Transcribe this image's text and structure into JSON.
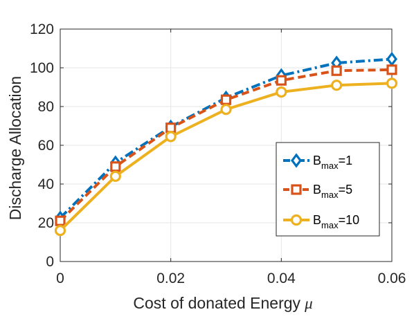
{
  "chart_data": {
    "type": "line",
    "title": "",
    "xlabel": "Cost of donated Energy",
    "xlabel_symbol": "μ",
    "ylabel": "Discharge Allocation",
    "xlim": [
      0,
      0.06
    ],
    "ylim": [
      0,
      120
    ],
    "x": [
      0,
      0.01,
      0.02,
      0.03,
      0.04,
      0.05,
      0.06
    ],
    "xticks": [
      "0",
      "0.02",
      "0.04",
      "0.06"
    ],
    "xtick_values": [
      0,
      0.02,
      0.04,
      0.06
    ],
    "yticks": [
      "0",
      "20",
      "40",
      "60",
      "80",
      "100",
      "120"
    ],
    "ytick_values": [
      0,
      20,
      40,
      60,
      80,
      100,
      120
    ],
    "grid": true,
    "legend_position": "lower-right",
    "series": [
      {
        "name_base": "B",
        "name_sub": "max",
        "name_value": "=1",
        "values": [
          22.5,
          51,
          69.5,
          84.5,
          96,
          102.5,
          104.5
        ],
        "color": "#0072BD",
        "line_style": "dash-dot",
        "marker": "diamond"
      },
      {
        "name_base": "B",
        "name_sub": "max",
        "name_value": "=5",
        "values": [
          21,
          49,
          69,
          83.5,
          93.5,
          98.5,
          99
        ],
        "color": "#D95319",
        "line_style": "dashed",
        "marker": "square"
      },
      {
        "name_base": "B",
        "name_sub": "max",
        "name_value": "=10",
        "values": [
          16,
          44,
          64.5,
          78.5,
          87.5,
          91,
          92
        ],
        "color": "#EDB120",
        "line_style": "solid",
        "marker": "circle"
      }
    ]
  }
}
